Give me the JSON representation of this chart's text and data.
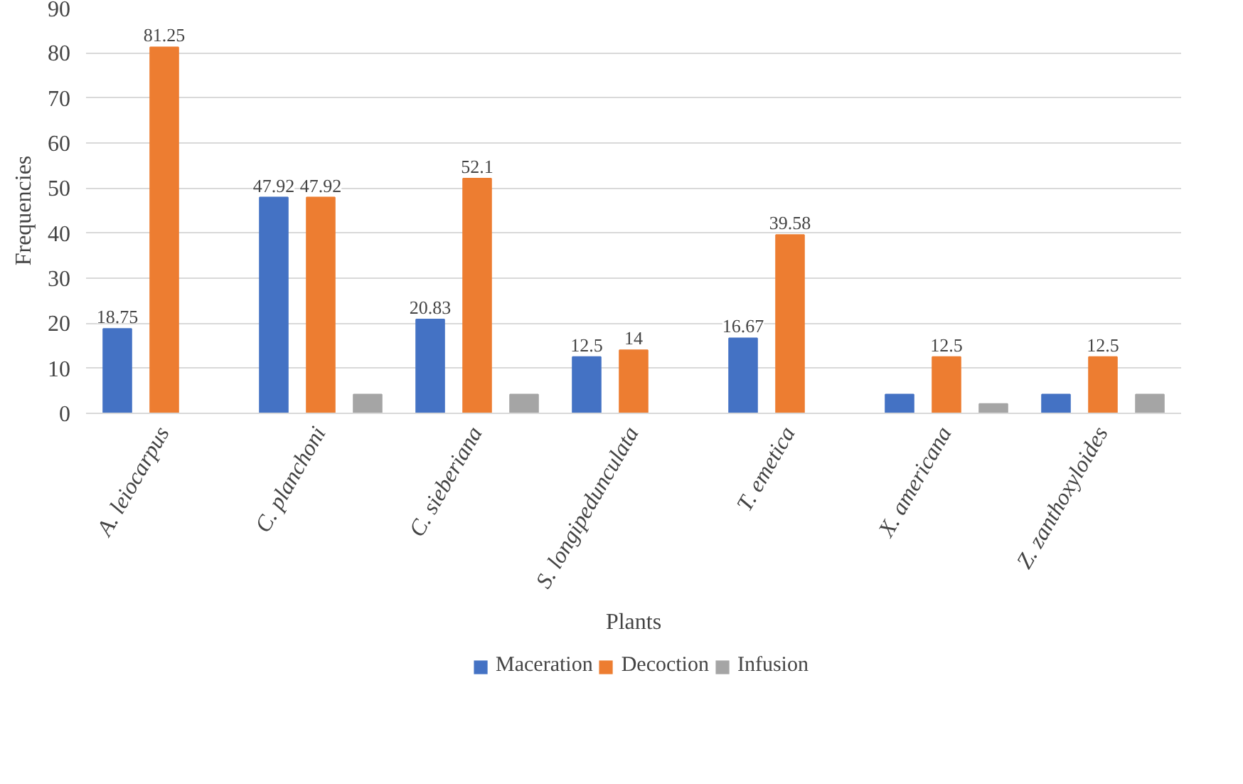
{
  "chart_data": {
    "type": "bar",
    "xlabel": "Plants",
    "ylabel": "Frequencies",
    "categories": [
      "A. leiocarpus",
      "C. planchoni",
      "C. sieberiana",
      "S. longipedunculata",
      "T. emetica",
      "X. americana",
      "Z. zanthoxyloides"
    ],
    "series": [
      {
        "name": "Maceration",
        "color": "#4472c4",
        "values": [
          18.75,
          47.92,
          20.83,
          12.5,
          16.67,
          4.2,
          4.2
        ],
        "value_labels": [
          "18.75",
          "47.92",
          "20.83",
          "12.5",
          "16.67",
          null,
          null
        ]
      },
      {
        "name": "Decoction",
        "color": "#ed7d31",
        "values": [
          81.25,
          47.92,
          52.1,
          14,
          39.58,
          12.5,
          12.5
        ],
        "value_labels": [
          "81.25",
          "47.92",
          "52.1",
          "14",
          "39.58",
          "12.5",
          "12.5"
        ]
      },
      {
        "name": "Infusion",
        "color": "#a5a5a5",
        "values": [
          null,
          4.2,
          4.2,
          null,
          null,
          2.1,
          4.2
        ],
        "value_labels": [
          null,
          null,
          null,
          null,
          null,
          null,
          null
        ]
      }
    ],
    "ylim": [
      0,
      90
    ],
    "yticks": [
      0,
      10,
      20,
      30,
      40,
      50,
      60,
      70,
      80,
      90
    ],
    "grid": "y",
    "legend": "bottom"
  }
}
